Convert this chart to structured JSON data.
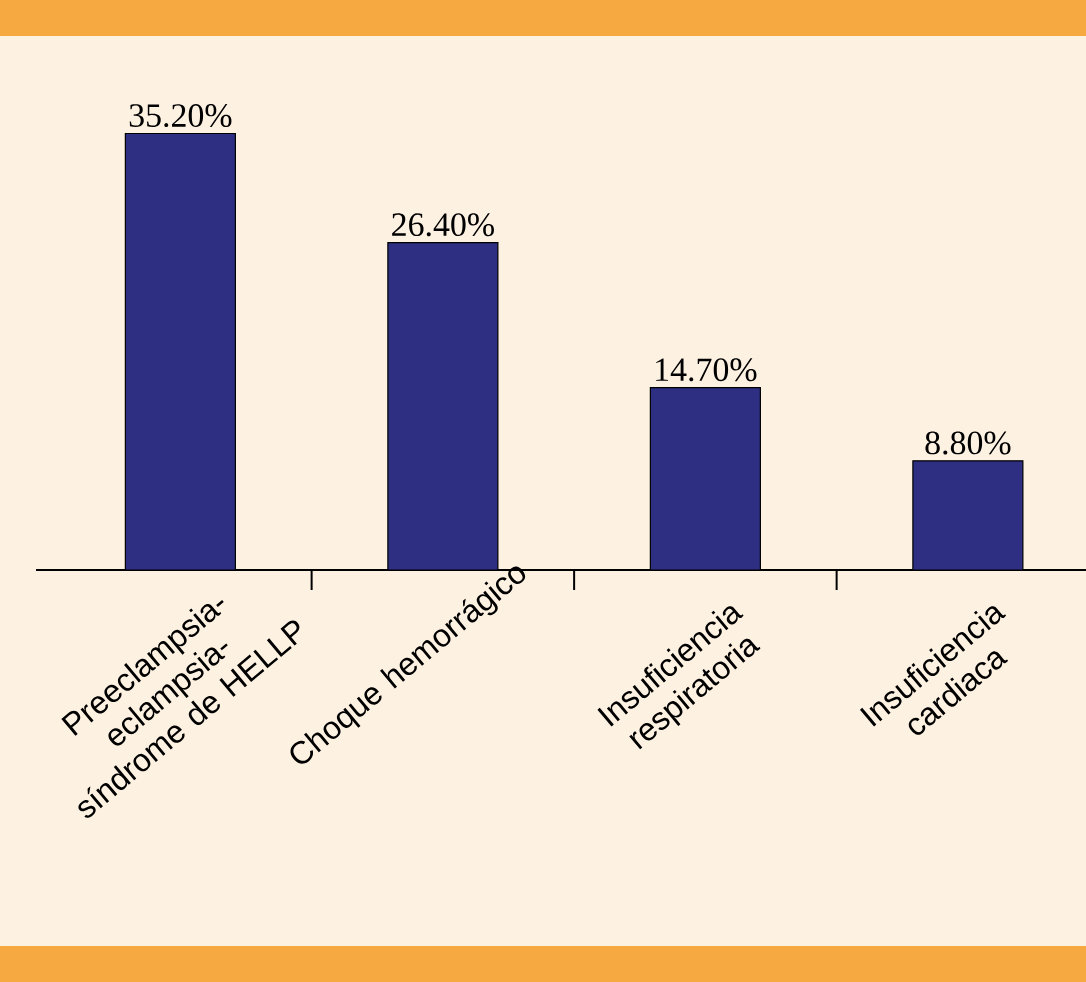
{
  "chart_data": {
    "type": "bar",
    "categories": [
      "Preeclampsia-eclampsia-síndrome de HELLP",
      "Choque hemorrágico",
      "Insuficiencia respiratoria",
      "Insuficiencia cardiaca"
    ],
    "values": [
      35.2,
      26.4,
      14.7,
      8.8
    ],
    "value_labels": [
      "35.20%",
      "26.40%",
      "14.70%",
      "8.80%"
    ],
    "color": "#2e2f82"
  }
}
